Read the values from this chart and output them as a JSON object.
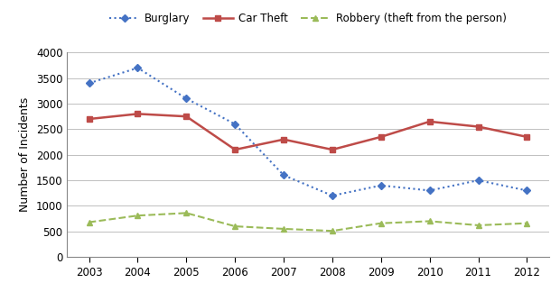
{
  "years": [
    2003,
    2004,
    2005,
    2006,
    2007,
    2008,
    2009,
    2010,
    2011,
    2012
  ],
  "burglary": [
    3400,
    3700,
    3100,
    2600,
    1600,
    1200,
    1400,
    1300,
    1500,
    1300
  ],
  "car_theft": [
    2700,
    2800,
    2750,
    2100,
    2300,
    2100,
    2350,
    2650,
    2550,
    2350
  ],
  "robbery": [
    680,
    810,
    860,
    600,
    550,
    510,
    660,
    700,
    620,
    660
  ],
  "burglary_color": "#4472C4",
  "car_theft_color": "#BE4B48",
  "robbery_color": "#9BBB59",
  "ylabel": "Number of Incidents",
  "ylim": [
    0,
    4000
  ],
  "yticks": [
    0,
    500,
    1000,
    1500,
    2000,
    2500,
    3000,
    3500,
    4000
  ],
  "legend_labels": [
    "Burglary",
    "Car Theft",
    "Robbery (theft from the person)"
  ],
  "background_color": "#ffffff",
  "grid_color": "#C0C0C0"
}
